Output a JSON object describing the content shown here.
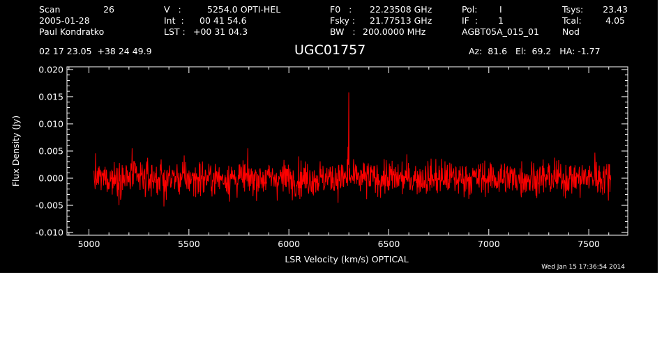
{
  "header": {
    "scan_label": "Scan",
    "scan_number": "26",
    "date": "2005-01-28",
    "observer": "Paul Kondratko",
    "v_label": "V   :",
    "v_value": "5254.0 OPTI-HEL",
    "int_label": "Int  :",
    "int_value": "00 41 54.6",
    "lst_label": "LST :",
    "lst_value": "+00 31 04.3",
    "f0_label": "F0   :",
    "f0_value": "22.23508 GHz",
    "fsky_label": "Fsky :",
    "fsky_value": "21.77513 GHz",
    "bw_label": "BW   :",
    "bw_value": "200.0000 MHz",
    "pol_label": "Pol:",
    "pol_value": "I",
    "if_label": "IF  :",
    "if_value": "1",
    "project": "AGBT05A_015_01",
    "tsys_label": "Tsys:",
    "tsys_value": "23.43",
    "tcal_label": "Tcal:",
    "tcal_value": "4.05",
    "proc": "Nod",
    "coords": "02 17 23.05  +38 24 49.9",
    "source": "UGC01757",
    "azel": "Az:  81.6   El:  69.2   HA: -1.77"
  },
  "footer": {
    "timestamp": "Wed Jan 15 17:36:54 2014"
  },
  "colors": {
    "background": "#000000",
    "axes": "#ffffff",
    "trace": "#ff0000"
  },
  "chart_data": {
    "type": "line",
    "title": "",
    "xlabel": "LSR Velocity (km/s) OPTICAL",
    "ylabel": "Flux Density (Jy)",
    "xlim": [
      4890,
      7695
    ],
    "ylim": [
      -0.0105,
      0.0205
    ],
    "x_ticks": [
      5000,
      5500,
      6000,
      6500,
      7000,
      7500
    ],
    "x_tick_labels": [
      "5000",
      "5500",
      "6000",
      "6500",
      "7000",
      "7500"
    ],
    "y_ticks": [
      -0.01,
      -0.005,
      0.0,
      0.005,
      0.01,
      0.015,
      0.02
    ],
    "y_tick_labels": [
      "-0.010",
      "-0.005",
      "0.000",
      "0.005",
      "0.010",
      "0.015",
      "0.020"
    ],
    "grid": false,
    "series": [
      {
        "color": "#ff0000",
        "x_range": [
          5025,
          7610
        ],
        "noise_rms": 0.0016,
        "noise_min": -0.0055,
        "noise_max": 0.0055,
        "peaks": [
          {
            "x": 6300,
            "y": 0.0158
          },
          {
            "x": 6295,
            "y": 0.0058
          },
          {
            "x": 5215,
            "y": 0.0055
          },
          {
            "x": 5375,
            "y": -0.0052
          },
          {
            "x": 7530,
            "y": 0.0047
          }
        ]
      }
    ]
  }
}
